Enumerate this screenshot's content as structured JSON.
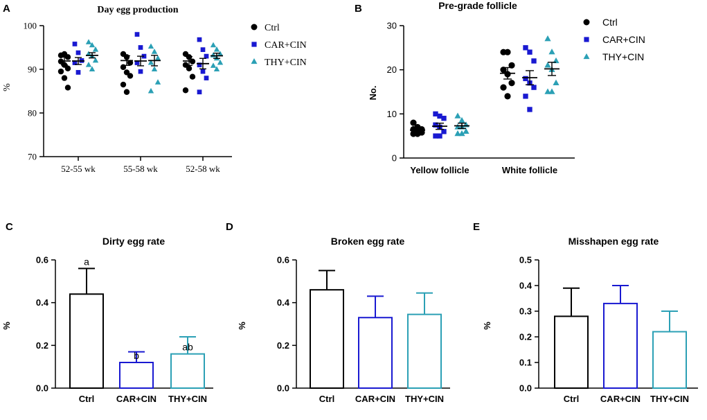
{
  "chart_data": [
    {
      "panel": "A",
      "type": "scatter",
      "title": "Day egg production",
      "xlabel": "",
      "ylabel": "%",
      "ylim": [
        70,
        100
      ],
      "yticks": [
        "100",
        "90",
        "80",
        "70"
      ],
      "categories": [
        "52-55 wk",
        "55-58 wk",
        "52-58 wk"
      ],
      "legend_position": "right",
      "series": [
        {
          "name": "Ctrl",
          "color": "#000000",
          "marker": "circle",
          "points": [
            [
              93.2,
              93.5,
              92.8,
              91.8,
              91.0,
              90.2,
              89.5,
              88.0,
              85.8
            ],
            [
              93.5,
              92.8,
              91.5,
              90.5,
              89.3,
              88.5,
              86.5,
              84.8
            ],
            [
              93.5,
              92.8,
              91.8,
              91.0,
              90.2,
              88.3,
              85.2
            ]
          ],
          "mean": [
            91.9,
            92.0,
            91.9
          ],
          "sem": [
            0.9,
            1.1,
            1.0
          ]
        },
        {
          "name": "CAR+CIN",
          "color": "#1919d1",
          "marker": "square",
          "points": [
            [
              95.8,
              93.8,
              92.0,
              91.5,
              89.3
            ],
            [
              98.0,
              95.0,
              93.0,
              91.5,
              89.5
            ],
            [
              96.8,
              94.5,
              93.0,
              91.0,
              89.5,
              88.0,
              84.8
            ]
          ],
          "mean": [
            91.9,
            91.9,
            91.3
          ],
          "sem": [
            0.8,
            1.1,
            1.2
          ]
        },
        {
          "name": "THY+CIN",
          "color": "#2ba0b5",
          "marker": "triangle",
          "points": [
            [
              96.2,
              95.5,
              94.5,
              93.5,
              93.0,
              92.0,
              91.0,
              90.0
            ],
            [
              95.2,
              94.0,
              92.5,
              91.5,
              90.0,
              87.0,
              85.0
            ],
            [
              95.5,
              94.5,
              93.5,
              93.2,
              92.5,
              91.5,
              90.8,
              90.0
            ]
          ],
          "mean": [
            93.2,
            92.0,
            93.1
          ],
          "sem": [
            0.6,
            1.2,
            0.6
          ]
        }
      ]
    },
    {
      "panel": "B",
      "type": "scatter",
      "title": "Pre-grade follicle",
      "xlabel": "",
      "ylabel": "No.",
      "ylim": [
        0,
        30
      ],
      "yticks": [
        "30",
        "20",
        "10",
        "0"
      ],
      "categories": [
        "Yellow follicle",
        "White follicle"
      ],
      "legend_position": "right",
      "series": [
        {
          "name": "Ctrl",
          "color": "#000000",
          "marker": "circle",
          "points": [
            [
              8,
              7,
              6.5,
              6.5,
              6,
              5.8,
              5.5,
              5.5
            ],
            [
              24,
              24,
              21,
              20,
              19,
              17,
              16,
              14
            ]
          ],
          "mean": [
            6.3,
            19.2
          ],
          "sem": [
            0.3,
            1.3
          ]
        },
        {
          "name": "CAR+CIN",
          "color": "#1919d1",
          "marker": "square",
          "points": [
            [
              10,
              9.5,
              9,
              7.5,
              7,
              6,
              5,
              5
            ],
            [
              25,
              24,
              22,
              18,
              17,
              16,
              14,
              11
            ]
          ],
          "mean": [
            7.2,
            18.2
          ],
          "sem": [
            0.7,
            1.6
          ]
        },
        {
          "name": "THY+CIN",
          "color": "#2ba0b5",
          "marker": "triangle",
          "points": [
            [
              9.5,
              8.5,
              7.5,
              7,
              7,
              6,
              5.5,
              5.5
            ],
            [
              27,
              24,
              22,
              21,
              20,
              17,
              15,
              15
            ]
          ],
          "mean": [
            7.3,
            20.2
          ],
          "sem": [
            0.6,
            1.5
          ]
        }
      ]
    },
    {
      "panel": "C",
      "type": "bar",
      "title": "Dirty egg rate",
      "xlabel": "",
      "ylabel": "%",
      "ylim": [
        0,
        0.6
      ],
      "yticks": [
        "0.6",
        "0.4",
        "0.2",
        "0.0"
      ],
      "categories": [
        "Ctrl",
        "CAR+CIN",
        "THY+CIN"
      ],
      "values": [
        0.44,
        0.12,
        0.16
      ],
      "errors": [
        0.12,
        0.05,
        0.08
      ],
      "letters": [
        "a",
        "b",
        "ab"
      ]
    },
    {
      "panel": "D",
      "type": "bar",
      "title": "Broken egg rate",
      "xlabel": "",
      "ylabel": "%",
      "ylim": [
        0,
        0.6
      ],
      "yticks": [
        "0.6",
        "0.4",
        "0.2",
        "0.0"
      ],
      "categories": [
        "Ctrl",
        "CAR+CIN",
        "THY+CIN"
      ],
      "values": [
        0.46,
        0.33,
        0.345
      ],
      "errors": [
        0.09,
        0.1,
        0.1
      ],
      "letters": [
        "",
        "",
        ""
      ]
    },
    {
      "panel": "E",
      "type": "bar",
      "title": "Misshapen egg rate",
      "xlabel": "",
      "ylabel": "%",
      "ylim": [
        0,
        0.5
      ],
      "yticks": [
        "0.5",
        "0.4",
        "0.3",
        "0.2",
        "0.1",
        "0.0"
      ],
      "categories": [
        "Ctrl",
        "CAR+CIN",
        "THY+CIN"
      ],
      "values": [
        0.28,
        0.33,
        0.22
      ],
      "errors": [
        0.11,
        0.07,
        0.08
      ],
      "letters": [
        "",
        "",
        ""
      ]
    }
  ]
}
